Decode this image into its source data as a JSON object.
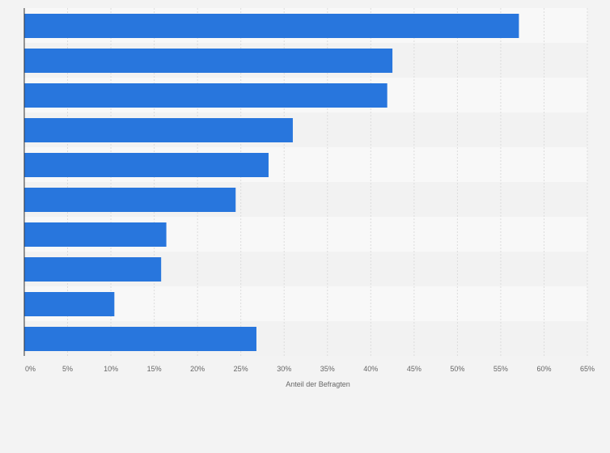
{
  "chart_data": {
    "type": "bar",
    "orientation": "horizontal",
    "title": "",
    "categories": [
      "",
      "",
      "",
      "",
      "",
      "",
      "",
      "",
      "",
      ""
    ],
    "values": [
      57.1,
      42.5,
      41.9,
      31.0,
      28.2,
      24.4,
      16.4,
      15.8,
      10.4,
      26.8
    ],
    "unit": "%",
    "xlabel": "Anteil der Befragten",
    "ylabel": "",
    "xlim": [
      0,
      65
    ],
    "xticks": [
      "0%",
      "5%",
      "10%",
      "15%",
      "20%",
      "25%",
      "30%",
      "35%",
      "40%",
      "45%",
      "50%",
      "55%",
      "60%",
      "65%"
    ],
    "grid": true,
    "legend": "none",
    "colors": {
      "bar": "#2876dd",
      "band_light": "#f8f8f8",
      "band_dark": "#f2f2f2",
      "gridline": "#dcdcdc",
      "axis": "#333333"
    }
  }
}
